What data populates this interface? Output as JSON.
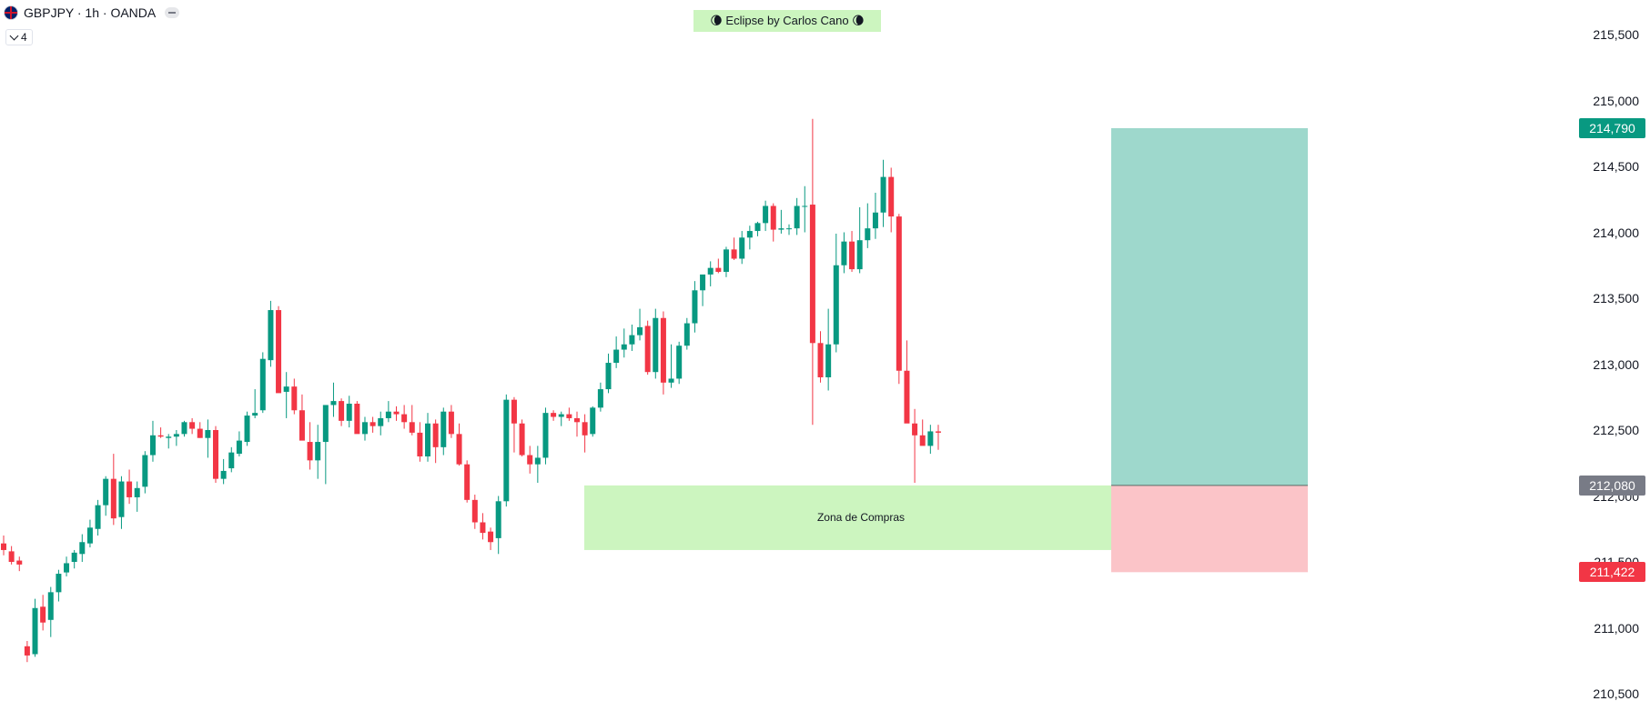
{
  "header": {
    "symbol": "GBPJPY · 1h · OANDA",
    "indicators_count": "4",
    "flag_icon": "uk-flag-icon"
  },
  "banner": {
    "text": "🌘 Eclipse by Carlos Cano 🌘"
  },
  "colors": {
    "up": "#089981",
    "down": "#f23645",
    "zone": "#ccf5bf",
    "target_zone": "#9ed8cc",
    "stop_zone": "#fbc4c8",
    "entry_badge": "#787b86"
  },
  "chart_data": {
    "type": "candlestick",
    "y_axis": {
      "min": 210500,
      "max": 215600,
      "ticks": [
        {
          "value": 215500,
          "label": "215,500"
        },
        {
          "value": 215000,
          "label": "215,000"
        },
        {
          "value": 214500,
          "label": "214,500"
        },
        {
          "value": 214000,
          "label": "214,000"
        },
        {
          "value": 213500,
          "label": "213,500"
        },
        {
          "value": 213000,
          "label": "213,000"
        },
        {
          "value": 212500,
          "label": "212,500"
        },
        {
          "value": 212000,
          "label": "212,000"
        },
        {
          "value": 211500,
          "label": "211,500"
        },
        {
          "value": 211000,
          "label": "211,000"
        },
        {
          "value": 210500,
          "label": "210,500"
        }
      ]
    },
    "candles": [
      [
        211640,
        211700,
        211550,
        211590
      ],
      [
        211580,
        211620,
        211480,
        211500
      ],
      [
        211510,
        211540,
        211430,
        211480
      ],
      [
        210860,
        210900,
        210740,
        210790
      ],
      [
        210800,
        211220,
        210780,
        211150
      ],
      [
        211160,
        211250,
        210980,
        211040
      ],
      [
        211060,
        211310,
        210930,
        211270
      ],
      [
        211270,
        211440,
        211200,
        211410
      ],
      [
        211420,
        211540,
        211390,
        211490
      ],
      [
        211500,
        211590,
        211450,
        211570
      ],
      [
        211560,
        211710,
        211500,
        211650
      ],
      [
        211640,
        211820,
        211610,
        211760
      ],
      [
        211750,
        211970,
        211700,
        211930
      ],
      [
        211930,
        212150,
        211850,
        212130
      ],
      [
        212130,
        212320,
        211780,
        211830
      ],
      [
        211840,
        212150,
        211750,
        212110
      ],
      [
        212110,
        212200,
        211940,
        211990
      ],
      [
        211990,
        212110,
        211880,
        212060
      ],
      [
        212070,
        212340,
        212020,
        212310
      ],
      [
        212310,
        212570,
        212260,
        212460
      ],
      [
        212460,
        212520,
        212440,
        212450
      ],
      [
        212440,
        212470,
        212360,
        212450
      ],
      [
        212450,
        212500,
        212380,
        212470
      ],
      [
        212470,
        212570,
        212450,
        212560
      ],
      [
        212560,
        212590,
        212470,
        212510
      ],
      [
        212510,
        212560,
        212440,
        212440
      ],
      [
        212440,
        212580,
        212290,
        212500
      ],
      [
        212500,
        212530,
        212100,
        212130
      ],
      [
        212130,
        212280,
        212090,
        212190
      ],
      [
        212210,
        212370,
        212180,
        212330
      ],
      [
        212320,
        212490,
        212300,
        212420
      ],
      [
        212410,
        212640,
        212380,
        212610
      ],
      [
        212610,
        212810,
        212590,
        212630
      ],
      [
        212650,
        213090,
        212630,
        213040
      ],
      [
        213030,
        213480,
        212980,
        213410
      ],
      [
        213410,
        213440,
        212820,
        212780
      ],
      [
        212790,
        212940,
        212590,
        212830
      ],
      [
        212830,
        212890,
        212620,
        212650
      ],
      [
        212650,
        212770,
        212430,
        212420
      ],
      [
        212410,
        212560,
        212200,
        212270
      ],
      [
        212270,
        212540,
        212130,
        212410
      ],
      [
        212410,
        212660,
        212090,
        212690
      ],
      [
        212690,
        212860,
        212600,
        212720
      ],
      [
        212720,
        212740,
        212530,
        212570
      ],
      [
        212570,
        212760,
        212520,
        212700
      ],
      [
        212700,
        212720,
        212490,
        212470
      ],
      [
        212470,
        212600,
        212420,
        212560
      ],
      [
        212560,
        212600,
        212480,
        212530
      ],
      [
        212530,
        212640,
        212460,
        212590
      ],
      [
        212590,
        212720,
        212560,
        212640
      ],
      [
        212640,
        212680,
        212570,
        212620
      ],
      [
        212620,
        212690,
        212510,
        212560
      ],
      [
        212560,
        212690,
        212460,
        212480
      ],
      [
        212480,
        212560,
        212260,
        212300
      ],
      [
        212300,
        212630,
        212260,
        212550
      ],
      [
        212550,
        212580,
        212250,
        212370
      ],
      [
        212370,
        212670,
        212310,
        212640
      ],
      [
        212640,
        212690,
        212440,
        212470
      ],
      [
        212470,
        212550,
        212230,
        212240
      ],
      [
        212240,
        212270,
        211950,
        211970
      ],
      [
        211970,
        212010,
        211750,
        211800
      ],
      [
        211800,
        211870,
        211670,
        211720
      ],
      [
        211730,
        211760,
        211590,
        211650
      ],
      [
        211680,
        212000,
        211560,
        211960
      ],
      [
        211960,
        212770,
        211920,
        212730
      ],
      [
        212730,
        212750,
        212330,
        212550
      ],
      [
        212550,
        212580,
        212300,
        212310
      ],
      [
        212310,
        212380,
        212170,
        212240
      ],
      [
        212240,
        212380,
        212100,
        212290
      ],
      [
        212290,
        212670,
        212240,
        212630
      ],
      [
        212630,
        212650,
        212570,
        212600
      ],
      [
        212600,
        212640,
        212530,
        212620
      ],
      [
        212620,
        212670,
        212570,
        212590
      ],
      [
        212590,
        212640,
        212450,
        212560
      ],
      [
        212560,
        212620,
        212330,
        212460
      ],
      [
        212470,
        212680,
        212450,
        212670
      ],
      [
        212670,
        212860,
        212640,
        212810
      ],
      [
        212810,
        213080,
        212780,
        213010
      ],
      [
        213010,
        213210,
        212970,
        213110
      ],
      [
        213110,
        213270,
        213050,
        213150
      ],
      [
        213150,
        213300,
        213100,
        213220
      ],
      [
        213220,
        213420,
        213180,
        213280
      ],
      [
        213290,
        213330,
        212920,
        212940
      ],
      [
        212940,
        213420,
        212890,
        213350
      ],
      [
        213350,
        213400,
        212770,
        212860
      ],
      [
        212860,
        213150,
        212820,
        212890
      ],
      [
        212890,
        213170,
        212850,
        213140
      ],
      [
        213140,
        213350,
        213110,
        213310
      ],
      [
        213310,
        213630,
        213240,
        213560
      ],
      [
        213560,
        213660,
        213440,
        213680
      ],
      [
        213680,
        213780,
        213590,
        213730
      ],
      [
        213730,
        213800,
        213690,
        213700
      ],
      [
        213700,
        213890,
        213660,
        213870
      ],
      [
        213870,
        213960,
        213790,
        213800
      ],
      [
        213800,
        214010,
        213760,
        213960
      ],
      [
        213960,
        214050,
        213870,
        214010
      ],
      [
        214010,
        214080,
        213970,
        214070
      ],
      [
        214070,
        214240,
        214010,
        214200
      ],
      [
        214200,
        214220,
        213930,
        214020
      ],
      [
        214020,
        214170,
        213990,
        214030
      ],
      [
        214030,
        214060,
        213980,
        214030
      ],
      [
        214030,
        214260,
        213980,
        214200
      ],
      [
        214200,
        214350,
        214000,
        214200
      ],
      [
        214210,
        214860,
        212540,
        213160
      ],
      [
        213160,
        213250,
        212860,
        212900
      ],
      [
        212900,
        213420,
        212800,
        213150
      ],
      [
        213150,
        213990,
        213090,
        213750
      ],
      [
        213750,
        214000,
        213690,
        213930
      ],
      [
        213930,
        214010,
        213700,
        213720
      ],
      [
        213720,
        214190,
        213690,
        213940
      ],
      [
        213940,
        214220,
        213880,
        214030
      ],
      [
        214030,
        214300,
        213950,
        214150
      ],
      [
        214150,
        214550,
        214040,
        214420
      ],
      [
        214420,
        214490,
        214000,
        214120
      ],
      [
        214120,
        214140,
        212850,
        212950
      ],
      [
        212950,
        213180,
        212570,
        212550
      ],
      [
        212550,
        212660,
        212100,
        212460
      ],
      [
        212460,
        212580,
        212390,
        212380
      ],
      [
        212380,
        212540,
        212320,
        212490
      ],
      [
        212490,
        212540,
        212350,
        212480
      ]
    ],
    "zones": [
      {
        "kind": "demand",
        "label": "Zona de Compras",
        "top": 212080,
        "bottom": 211590
      },
      {
        "kind": "target",
        "top": 214790,
        "bottom": 212080
      },
      {
        "kind": "stop",
        "top": 212080,
        "bottom": 211422
      }
    ],
    "price_badges": [
      {
        "value": 214790,
        "label": "214,790",
        "color": "#089981"
      },
      {
        "value": 212080,
        "label": "212,080",
        "color": "#787b86"
      },
      {
        "value": 211422,
        "label": "211,422",
        "color": "#f23645"
      }
    ]
  }
}
